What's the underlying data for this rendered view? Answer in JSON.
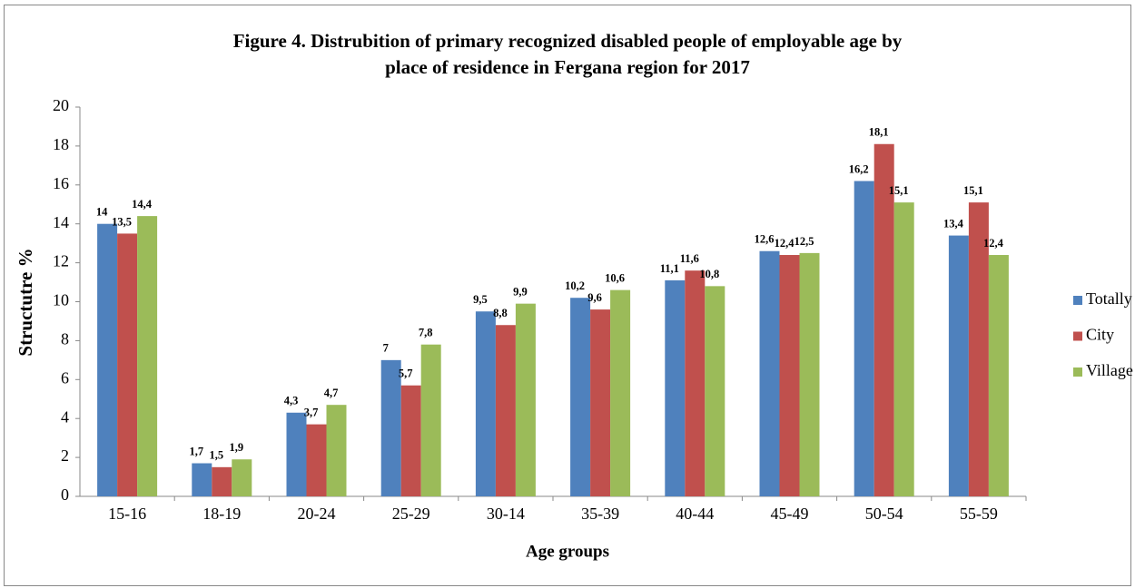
{
  "chart_data": {
    "type": "bar",
    "title": [
      "Figure  4. Distrubition of primary recognized disabled people of employable age by",
      "place of residence in Fergana region for 2017"
    ],
    "xlabel": "Age groups",
    "ylabel": "Structutre %",
    "categories": [
      "15-16",
      "18-19",
      "20-24",
      "25-29",
      "30-14",
      "35-39",
      "40-44",
      "45-49",
      "50-54",
      "55-59"
    ],
    "series": [
      {
        "name": "Totally",
        "color": "#4f81bd",
        "values": [
          14,
          1.7,
          4.3,
          7,
          9.5,
          10.2,
          11.1,
          12.6,
          16.2,
          13.4
        ],
        "value_labels": [
          "14",
          "1,7",
          "4,3",
          "7",
          "9,5",
          "10,2",
          "11,1",
          "12,6",
          "16,2",
          "13,4"
        ]
      },
      {
        "name": "City",
        "color": "#c0504d",
        "values": [
          13.5,
          1.5,
          3.7,
          5.7,
          8.8,
          9.6,
          11.6,
          12.4,
          18.1,
          15.1
        ],
        "value_labels": [
          "13,5",
          "1,5",
          "3,7",
          "5,7",
          "8,8",
          "9,6",
          "11,6",
          "12,4",
          "18,1",
          "15,1"
        ]
      },
      {
        "name": "Village",
        "color": "#9bbb59",
        "values": [
          14.4,
          1.9,
          4.7,
          7.8,
          9.9,
          10.6,
          10.8,
          12.5,
          15.1,
          12.4
        ],
        "value_labels": [
          "14,4",
          "1,9",
          "4,7",
          "7,8",
          "9,9",
          "10,6",
          "10,8",
          "12,5",
          "15,1",
          "12,4"
        ]
      }
    ],
    "ylim": [
      0,
      20
    ],
    "yticks": [
      0,
      2,
      4,
      6,
      8,
      10,
      12,
      14,
      16,
      18,
      20
    ],
    "grid": false,
    "legend": "right"
  }
}
